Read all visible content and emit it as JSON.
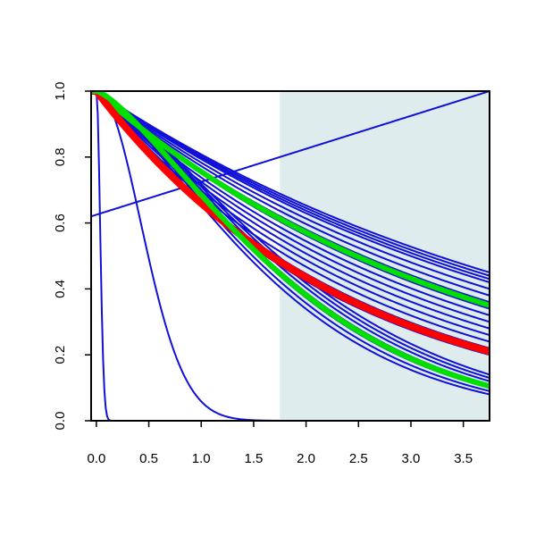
{
  "chart_data": {
    "type": "line",
    "title": "",
    "xlabel": "",
    "ylabel": "",
    "xlim": [
      -0.05,
      3.75
    ],
    "ylim": [
      0,
      1.0
    ],
    "x_ticks": [
      "0.0",
      "0.5",
      "1.0",
      "1.5",
      "2.0",
      "2.5",
      "3.0",
      "3.5"
    ],
    "y_ticks": [
      "0.0",
      "0.2",
      "0.4",
      "0.6",
      "0.8",
      "1.0"
    ],
    "shaded_region": {
      "x_from": 1.75,
      "x_to": 3.75,
      "color": "#dfeced"
    },
    "grid": false,
    "legend": "none",
    "colors": {
      "blue": "#1010d8",
      "red": "#ff0000",
      "green": "#00e000"
    },
    "series": [
      {
        "id": "rising-line",
        "kind": "linear",
        "y0": 0.62,
        "y1": 1.0,
        "color": "#1010d8",
        "width": 2
      },
      {
        "id": "steep-bell",
        "kind": "gauss",
        "sigma": 0.42,
        "color": "#1010d8",
        "width": 2
      },
      {
        "id": "near-vertical-drop",
        "kind": "gauss",
        "sigma": 0.035,
        "color": "#1010d8",
        "width": 2
      },
      {
        "id": "blue-upper-1",
        "kind": "exp",
        "y_at_end": 0.45,
        "color": "#1010d8",
        "width": 2
      },
      {
        "id": "blue-upper-2",
        "kind": "exp",
        "y_at_end": 0.44,
        "color": "#1010d8",
        "width": 2
      },
      {
        "id": "blue-upper-3",
        "kind": "exp",
        "y_at_end": 0.43,
        "color": "#1010d8",
        "width": 2
      },
      {
        "id": "blue-upper-4",
        "kind": "exp",
        "y_at_end": 0.42,
        "color": "#1010d8",
        "width": 2
      },
      {
        "id": "blue-upper-5",
        "kind": "exp",
        "y_at_end": 0.4,
        "color": "#1010d8",
        "width": 2
      },
      {
        "id": "blue-upper-6",
        "kind": "exp",
        "y_at_end": 0.38,
        "color": "#1010d8",
        "width": 2
      },
      {
        "id": "blue-upper-7",
        "kind": "exp",
        "y_at_end": 0.36,
        "color": "#1010d8",
        "width": 2
      },
      {
        "id": "blue-upper-8",
        "kind": "exp",
        "y_at_end": 0.34,
        "color": "#1010d8",
        "width": 2
      },
      {
        "id": "blue-mid-1",
        "kind": "exp",
        "y_at_end": 0.32,
        "color": "#1010d8",
        "width": 2
      },
      {
        "id": "blue-mid-2",
        "kind": "exp",
        "y_at_end": 0.3,
        "color": "#1010d8",
        "width": 2
      },
      {
        "id": "blue-mid-3",
        "kind": "exp",
        "y_at_end": 0.28,
        "color": "#1010d8",
        "width": 2
      },
      {
        "id": "blue-mid-4",
        "kind": "exp",
        "y_at_end": 0.26,
        "color": "#1010d8",
        "width": 2
      },
      {
        "id": "blue-mid-5",
        "kind": "exp",
        "y_at_end": 0.24,
        "color": "#1010d8",
        "width": 2
      },
      {
        "id": "blue-mid-6",
        "kind": "exp",
        "y_at_end": 0.22,
        "color": "#1010d8",
        "width": 2
      },
      {
        "id": "blue-mid-7",
        "kind": "exp",
        "y_at_end": 0.2,
        "color": "#1010d8",
        "width": 2
      },
      {
        "id": "blue-lower-1",
        "kind": "gauss_end",
        "y_at_end": 0.14,
        "color": "#1010d8",
        "width": 2
      },
      {
        "id": "blue-lower-2",
        "kind": "gauss_end",
        "y_at_end": 0.13,
        "color": "#1010d8",
        "width": 2
      },
      {
        "id": "blue-lower-3",
        "kind": "gauss_end",
        "y_at_end": 0.12,
        "color": "#1010d8",
        "width": 2
      },
      {
        "id": "blue-lower-4",
        "kind": "gauss_end",
        "y_at_end": 0.11,
        "color": "#1010d8",
        "width": 2
      },
      {
        "id": "blue-lower-5",
        "kind": "gauss_end",
        "y_at_end": 0.1,
        "color": "#1010d8",
        "width": 2
      },
      {
        "id": "blue-lower-6",
        "kind": "gauss_end",
        "y_at_end": 0.09,
        "color": "#1010d8",
        "width": 2
      },
      {
        "id": "blue-lower-7",
        "kind": "gauss_end",
        "y_at_end": 0.08,
        "color": "#1010d8",
        "width": 2
      },
      {
        "id": "green-upper",
        "kind": "exp",
        "y_at_end": 0.35,
        "color": "#00e000",
        "width": 6
      },
      {
        "id": "red-central",
        "kind": "exp",
        "y_at_end": 0.21,
        "color": "#ff0000",
        "width": 8
      },
      {
        "id": "green-lower",
        "kind": "gauss_end",
        "y_at_end": 0.105,
        "color": "#00e000",
        "width": 6
      }
    ]
  }
}
